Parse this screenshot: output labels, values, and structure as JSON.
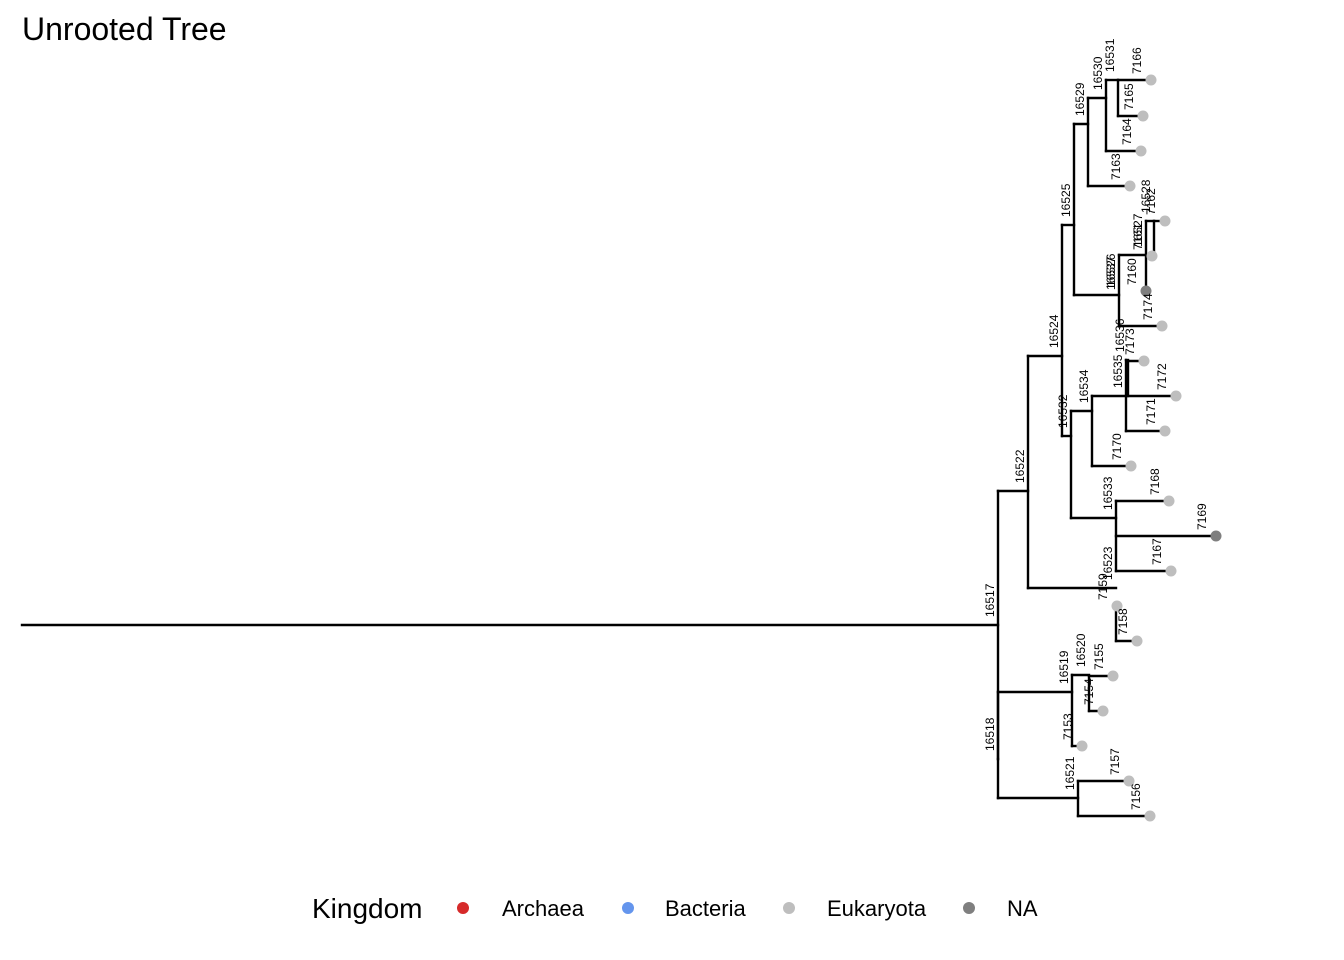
{
  "title": "Unrooted Tree",
  "legend": {
    "title": "Kingdom",
    "items": [
      {
        "label": "Archaea",
        "color": "#d62a2a"
      },
      {
        "label": "Bacteria",
        "color": "#6495ed"
      },
      {
        "label": "Eukaryota",
        "color": "#bebebe"
      },
      {
        "label": "NA",
        "color": "#7f7f7f"
      }
    ]
  },
  "tree": {
    "internal_nodes": [
      "16517",
      "16518",
      "16519",
      "16520",
      "16521",
      "16522",
      "16523",
      "16524",
      "16525",
      "16526",
      "16527",
      "16528",
      "16529",
      "16530",
      "16531",
      "16532",
      "16533",
      "16534",
      "16535",
      "16536",
      "16537"
    ],
    "tips": [
      {
        "label": "7166",
        "kingdom": "Eukaryota"
      },
      {
        "label": "7165",
        "kingdom": "Eukaryota"
      },
      {
        "label": "7164",
        "kingdom": "Eukaryota"
      },
      {
        "label": "7163",
        "kingdom": "Eukaryota"
      },
      {
        "label": "7162",
        "kingdom": "Eukaryota"
      },
      {
        "label": "7161",
        "kingdom": "Eukaryota"
      },
      {
        "label": "7160",
        "kingdom": "NA"
      },
      {
        "label": "7174",
        "kingdom": "Eukaryota"
      },
      {
        "label": "7173",
        "kingdom": "Eukaryota"
      },
      {
        "label": "7172",
        "kingdom": "Eukaryota"
      },
      {
        "label": "7171",
        "kingdom": "Eukaryota"
      },
      {
        "label": "7170",
        "kingdom": "Eukaryota"
      },
      {
        "label": "7169",
        "kingdom": "NA"
      },
      {
        "label": "7168",
        "kingdom": "Eukaryota"
      },
      {
        "label": "7167",
        "kingdom": "Eukaryota"
      },
      {
        "label": "7159",
        "kingdom": "Eukaryota"
      },
      {
        "label": "7158",
        "kingdom": "Eukaryota"
      },
      {
        "label": "7155",
        "kingdom": "Eukaryota"
      },
      {
        "label": "7154",
        "kingdom": "Eukaryota"
      },
      {
        "label": "7153",
        "kingdom": "Eukaryota"
      },
      {
        "label": "7157",
        "kingdom": "Eukaryota"
      },
      {
        "label": "7156",
        "kingdom": "Eukaryota"
      }
    ]
  }
}
